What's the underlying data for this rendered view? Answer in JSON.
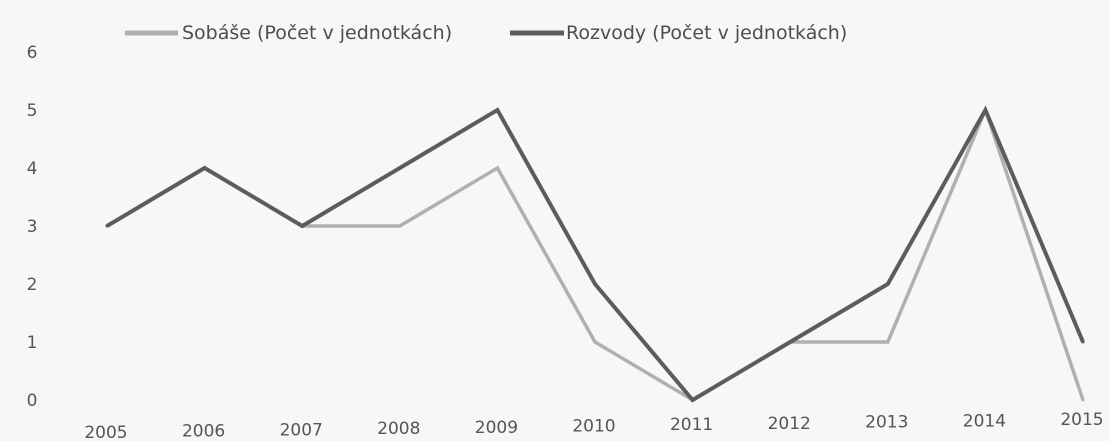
{
  "chart_data": {
    "type": "line",
    "title": "",
    "xlabel": "",
    "ylabel": "",
    "categories": [
      "2005",
      "2006",
      "2007",
      "2008",
      "2009",
      "2010",
      "2011",
      "2012",
      "2013",
      "2014",
      "2015"
    ],
    "series": [
      {
        "name": "Sobáše (Počet v jednotkách)",
        "color": "#b0b0b0",
        "values": [
          3,
          4,
          3,
          3,
          4,
          1,
          0,
          1,
          1,
          5,
          0
        ]
      },
      {
        "name": "Rozvody (Počet v jednotkách)",
        "color": "#5c5c5c",
        "values": [
          3,
          4,
          3,
          4,
          5,
          2,
          0,
          1,
          2,
          5,
          1
        ]
      }
    ],
    "ylim": [
      0,
      6
    ],
    "yticks": [
      "0",
      "1",
      "2",
      "3",
      "4",
      "5",
      "6"
    ],
    "grid": false,
    "legend_position": "top"
  }
}
